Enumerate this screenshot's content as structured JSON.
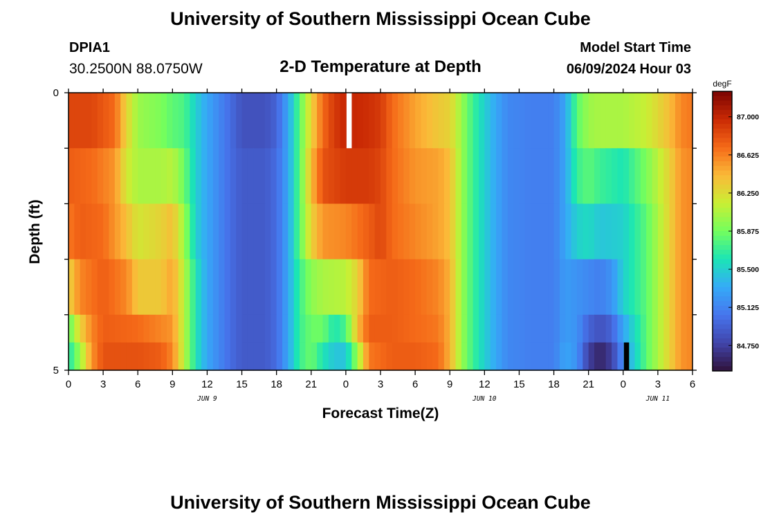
{
  "header": {
    "title": "University of Southern Mississippi Ocean Cube",
    "station_id": "DPIA1",
    "station_coords": "30.2500N  88.0750W",
    "plot_title": "2-D Temperature at Depth",
    "model_start_label": "Model Start Time",
    "model_start_value": "06/09/2024 Hour 03"
  },
  "footer": {
    "title": "University of Southern Mississippi Ocean Cube"
  },
  "chart_data": {
    "type": "heatmap",
    "title": "2-D Temperature at Depth",
    "xlabel": "Forecast Time(Z)",
    "ylabel": "Depth (ft)",
    "xlim": [
      0,
      54
    ],
    "ylim": [
      0,
      5
    ],
    "x_ticks": [
      {
        "hour": 0,
        "label": "0"
      },
      {
        "hour": 3,
        "label": "3"
      },
      {
        "hour": 6,
        "label": "6"
      },
      {
        "hour": 9,
        "label": "9"
      },
      {
        "hour": 12,
        "label": "12"
      },
      {
        "hour": 15,
        "label": "15"
      },
      {
        "hour": 18,
        "label": "18"
      },
      {
        "hour": 21,
        "label": "21"
      },
      {
        "hour": 24,
        "label": "0"
      },
      {
        "hour": 27,
        "label": "3"
      },
      {
        "hour": 30,
        "label": "6"
      },
      {
        "hour": 33,
        "label": "9"
      },
      {
        "hour": 36,
        "label": "12"
      },
      {
        "hour": 39,
        "label": "15"
      },
      {
        "hour": 42,
        "label": "18"
      },
      {
        "hour": 45,
        "label": "21"
      },
      {
        "hour": 48,
        "label": "0"
      },
      {
        "hour": 51,
        "label": "3"
      },
      {
        "hour": 54,
        "label": "6"
      }
    ],
    "date_labels": [
      {
        "hour": 12,
        "label": "JUN 9"
      },
      {
        "hour": 36,
        "label": "JUN 10"
      },
      {
        "hour": 51,
        "label": "JUN 11"
      }
    ],
    "y_ticks": [
      {
        "value": 0,
        "label": "0"
      },
      {
        "value": 5,
        "label": "5"
      }
    ],
    "colorbar": {
      "unit": "degF",
      "min": 84.5,
      "max": 87.25,
      "ticks": [
        "87.000",
        "86.625",
        "86.250",
        "85.875",
        "85.500",
        "85.125",
        "84.750"
      ]
    },
    "layers": [
      "0-1 ft",
      "1-2 ft",
      "2-3 ft",
      "3-4 ft",
      "4-4.5 ft",
      "4.5-5 ft"
    ],
    "hourly_layer_profiles": [
      {
        "name": "0-1 ft",
        "keyframes": [
          [
            0,
            86.85
          ],
          [
            2,
            86.85
          ],
          [
            4,
            86.7
          ],
          [
            5,
            86.3
          ],
          [
            6,
            86.0
          ],
          [
            8,
            85.9
          ],
          [
            9,
            85.8
          ],
          [
            10,
            85.75
          ],
          [
            11,
            85.5
          ],
          [
            12,
            85.3
          ],
          [
            14,
            85.0
          ],
          [
            15,
            84.85
          ],
          [
            17,
            84.85
          ],
          [
            18,
            84.95
          ],
          [
            19,
            85.3
          ],
          [
            20,
            85.8
          ],
          [
            21,
            86.3
          ],
          [
            22,
            86.7
          ],
          [
            23,
            86.9
          ],
          [
            24,
            87.0
          ],
          [
            26,
            86.95
          ],
          [
            27,
            86.9
          ],
          [
            28,
            86.7
          ],
          [
            30,
            86.5
          ],
          [
            32,
            86.35
          ],
          [
            33,
            86.3
          ],
          [
            34,
            86.0
          ],
          [
            35,
            85.7
          ],
          [
            36,
            85.5
          ],
          [
            37,
            85.3
          ],
          [
            38,
            85.15
          ],
          [
            40,
            85.1
          ],
          [
            42,
            85.1
          ],
          [
            43,
            85.3
          ],
          [
            44,
            85.8
          ],
          [
            45,
            86.0
          ],
          [
            46,
            86.05
          ],
          [
            48,
            86.05
          ],
          [
            50,
            86.15
          ],
          [
            52,
            86.4
          ],
          [
            53,
            86.6
          ],
          [
            54,
            86.65
          ]
        ]
      },
      {
        "name": "1-2 ft",
        "keyframes": [
          [
            0,
            86.75
          ],
          [
            2,
            86.7
          ],
          [
            4,
            86.55
          ],
          [
            5,
            86.2
          ],
          [
            6,
            86.05
          ],
          [
            8,
            86.05
          ],
          [
            9,
            86.1
          ],
          [
            10,
            85.85
          ],
          [
            11,
            85.5
          ],
          [
            12,
            85.3
          ],
          [
            14,
            85.0
          ],
          [
            15,
            84.9
          ],
          [
            17,
            84.9
          ],
          [
            18,
            85.0
          ],
          [
            19,
            85.3
          ],
          [
            20,
            85.8
          ],
          [
            21,
            86.4
          ],
          [
            22,
            86.8
          ],
          [
            24,
            86.9
          ],
          [
            26,
            86.9
          ],
          [
            27,
            86.85
          ],
          [
            28,
            86.7
          ],
          [
            30,
            86.55
          ],
          [
            32,
            86.5
          ],
          [
            33,
            86.4
          ],
          [
            34,
            86.0
          ],
          [
            35,
            85.7
          ],
          [
            36,
            85.5
          ],
          [
            37,
            85.3
          ],
          [
            38,
            85.15
          ],
          [
            40,
            85.1
          ],
          [
            42,
            85.1
          ],
          [
            43,
            85.3
          ],
          [
            44,
            85.7
          ],
          [
            45,
            85.8
          ],
          [
            46,
            85.7
          ],
          [
            48,
            85.6
          ],
          [
            50,
            85.9
          ],
          [
            52,
            86.3
          ],
          [
            53,
            86.55
          ],
          [
            54,
            86.6
          ]
        ]
      },
      {
        "name": "2-3 ft",
        "keyframes": [
          [
            0,
            86.65
          ],
          [
            1,
            86.75
          ],
          [
            3,
            86.7
          ],
          [
            5,
            86.4
          ],
          [
            6,
            86.2
          ],
          [
            8,
            86.3
          ],
          [
            9,
            86.4
          ],
          [
            10,
            86.0
          ],
          [
            11,
            85.5
          ],
          [
            12,
            85.3
          ],
          [
            14,
            85.0
          ],
          [
            15,
            84.9
          ],
          [
            17,
            84.9
          ],
          [
            18,
            85.0
          ],
          [
            19,
            85.3
          ],
          [
            20,
            85.8
          ],
          [
            21,
            86.3
          ],
          [
            22,
            86.55
          ],
          [
            24,
            86.6
          ],
          [
            26,
            86.75
          ],
          [
            27,
            86.85
          ],
          [
            28,
            86.7
          ],
          [
            30,
            86.6
          ],
          [
            32,
            86.5
          ],
          [
            33,
            86.4
          ],
          [
            34,
            86.0
          ],
          [
            35,
            85.7
          ],
          [
            36,
            85.5
          ],
          [
            37,
            85.3
          ],
          [
            38,
            85.15
          ],
          [
            40,
            85.1
          ],
          [
            42,
            85.1
          ],
          [
            43,
            85.3
          ],
          [
            44,
            85.5
          ],
          [
            45,
            85.55
          ],
          [
            46,
            85.45
          ],
          [
            48,
            85.5
          ],
          [
            50,
            85.8
          ],
          [
            52,
            86.3
          ],
          [
            53,
            86.55
          ],
          [
            54,
            86.6
          ]
        ]
      },
      {
        "name": "3-4 ft",
        "keyframes": [
          [
            0,
            86.3
          ],
          [
            1,
            86.6
          ],
          [
            3,
            86.75
          ],
          [
            5,
            86.6
          ],
          [
            6,
            86.35
          ],
          [
            8,
            86.35
          ],
          [
            9,
            86.5
          ],
          [
            10,
            86.1
          ],
          [
            11,
            85.6
          ],
          [
            12,
            85.3
          ],
          [
            14,
            85.0
          ],
          [
            15,
            84.9
          ],
          [
            17,
            84.9
          ],
          [
            18,
            85.0
          ],
          [
            19,
            85.3
          ],
          [
            20,
            85.7
          ],
          [
            21,
            85.95
          ],
          [
            22,
            86.05
          ],
          [
            24,
            86.1
          ],
          [
            25,
            86.3
          ],
          [
            26,
            86.7
          ],
          [
            28,
            86.75
          ],
          [
            30,
            86.7
          ],
          [
            32,
            86.6
          ],
          [
            33,
            86.45
          ],
          [
            34,
            86.0
          ],
          [
            35,
            85.7
          ],
          [
            36,
            85.5
          ],
          [
            37,
            85.3
          ],
          [
            38,
            85.15
          ],
          [
            40,
            85.1
          ],
          [
            42,
            85.1
          ],
          [
            43,
            85.25
          ],
          [
            44,
            85.2
          ],
          [
            45,
            85.15
          ],
          [
            46,
            85.1
          ],
          [
            47,
            85.2
          ],
          [
            48,
            85.5
          ],
          [
            50,
            85.8
          ],
          [
            52,
            86.3
          ],
          [
            53,
            86.55
          ],
          [
            54,
            86.6
          ]
        ]
      },
      {
        "name": "4-4.5 ft",
        "keyframes": [
          [
            0,
            85.8
          ],
          [
            1,
            86.3
          ],
          [
            2,
            86.6
          ],
          [
            3,
            86.75
          ],
          [
            6,
            86.7
          ],
          [
            8,
            86.6
          ],
          [
            9,
            86.55
          ],
          [
            10,
            86.1
          ],
          [
            11,
            85.6
          ],
          [
            12,
            85.3
          ],
          [
            14,
            85.0
          ],
          [
            15,
            84.9
          ],
          [
            17,
            84.9
          ],
          [
            18,
            85.0
          ],
          [
            19,
            85.3
          ],
          [
            20,
            85.7
          ],
          [
            21,
            85.85
          ],
          [
            22,
            85.85
          ],
          [
            23,
            85.6
          ],
          [
            24,
            85.75
          ],
          [
            25,
            86.4
          ],
          [
            26,
            86.75
          ],
          [
            28,
            86.75
          ],
          [
            30,
            86.7
          ],
          [
            32,
            86.65
          ],
          [
            33,
            86.45
          ],
          [
            34,
            86.0
          ],
          [
            35,
            85.7
          ],
          [
            36,
            85.5
          ],
          [
            37,
            85.3
          ],
          [
            38,
            85.15
          ],
          [
            40,
            85.1
          ],
          [
            42,
            85.1
          ],
          [
            43,
            85.25
          ],
          [
            44,
            85.2
          ],
          [
            45,
            84.95
          ],
          [
            46,
            84.85
          ],
          [
            47,
            84.95
          ],
          [
            48,
            85.3
          ],
          [
            50,
            85.8
          ],
          [
            52,
            86.3
          ],
          [
            53,
            86.55
          ],
          [
            54,
            86.6
          ]
        ]
      },
      {
        "name": "4.5-5 ft",
        "keyframes": [
          [
            0,
            85.6
          ],
          [
            1,
            86.0
          ],
          [
            2,
            86.55
          ],
          [
            3,
            86.8
          ],
          [
            6,
            86.8
          ],
          [
            8,
            86.75
          ],
          [
            9,
            86.6
          ],
          [
            10,
            86.1
          ],
          [
            11,
            85.6
          ],
          [
            12,
            85.3
          ],
          [
            14,
            85.0
          ],
          [
            15,
            84.9
          ],
          [
            17,
            84.9
          ],
          [
            18,
            85.0
          ],
          [
            19,
            85.3
          ],
          [
            20,
            85.7
          ],
          [
            21,
            85.85
          ],
          [
            22,
            85.6
          ],
          [
            23,
            85.45
          ],
          [
            24,
            85.45
          ],
          [
            25,
            86.0
          ],
          [
            26,
            86.65
          ],
          [
            28,
            86.75
          ],
          [
            30,
            86.75
          ],
          [
            32,
            86.7
          ],
          [
            33,
            86.45
          ],
          [
            34,
            86.0
          ],
          [
            35,
            85.7
          ],
          [
            36,
            85.5
          ],
          [
            37,
            85.3
          ],
          [
            38,
            85.15
          ],
          [
            40,
            85.1
          ],
          [
            42,
            85.1
          ],
          [
            43,
            85.3
          ],
          [
            44,
            85.2
          ],
          [
            45,
            84.75
          ],
          [
            46,
            84.6
          ],
          [
            47,
            84.75
          ],
          [
            48,
            85.2
          ],
          [
            50,
            85.8
          ],
          [
            52,
            86.3
          ],
          [
            53,
            86.55
          ],
          [
            54,
            86.6
          ]
        ]
      }
    ],
    "missing_cells": [
      {
        "hour": 24,
        "layer": "0-1 ft",
        "color": "#ffffff"
      }
    ],
    "below_range_cells": [
      {
        "hour": 48,
        "layer": "4.5-5 ft",
        "color": "#000000"
      }
    ]
  }
}
